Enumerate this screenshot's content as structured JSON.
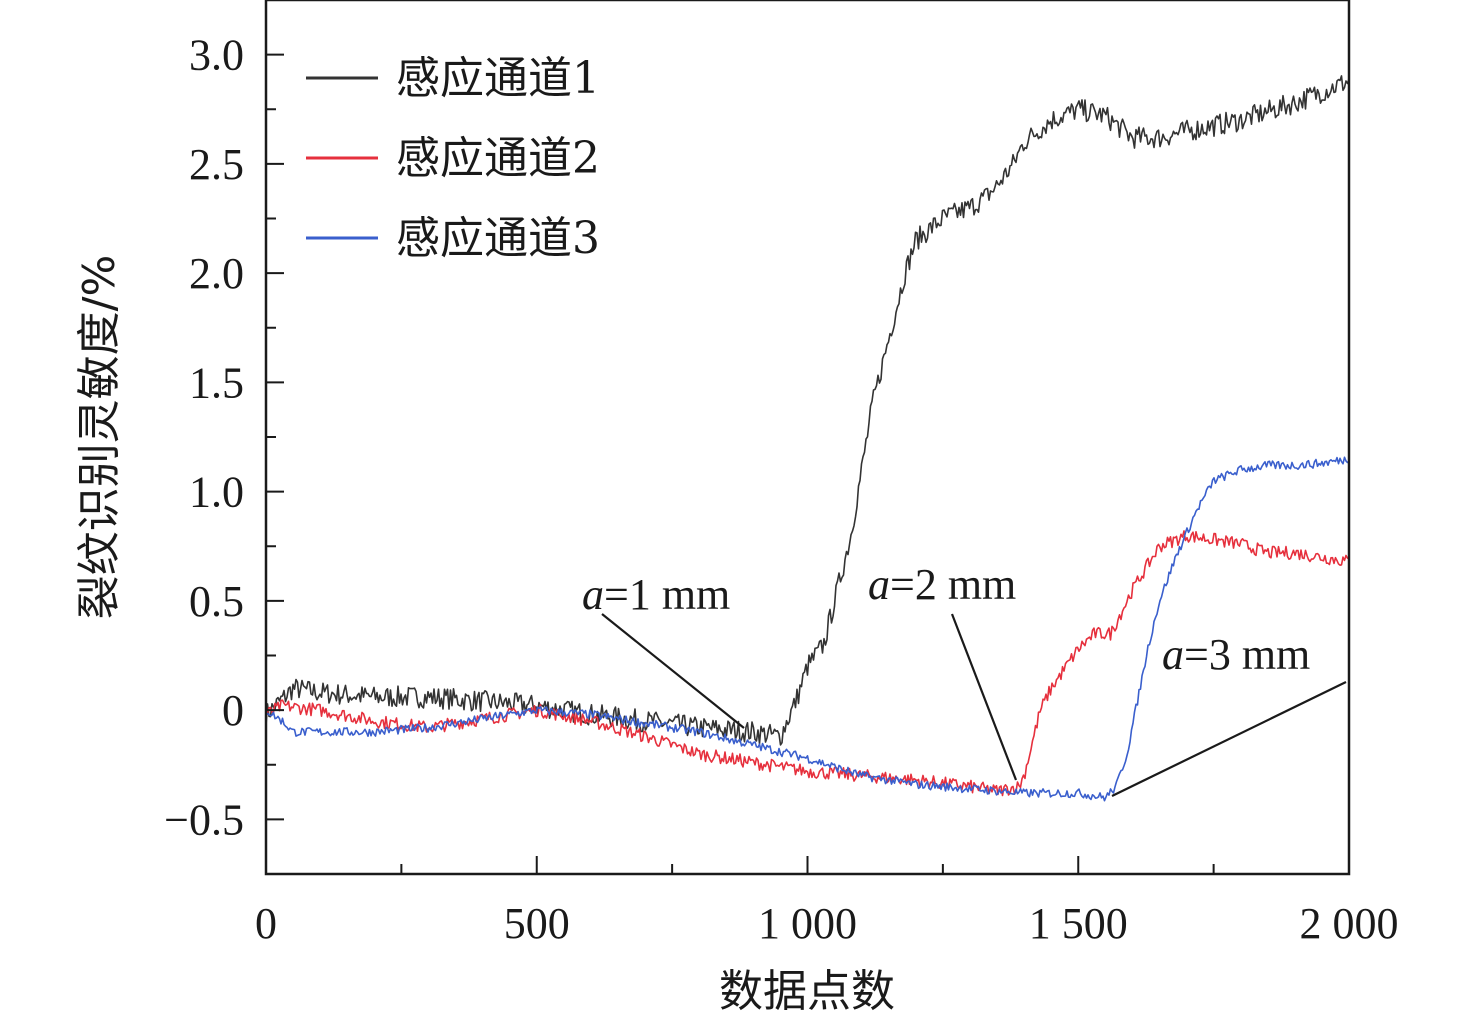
{
  "chart_data": {
    "type": "line",
    "xlabel": "数据点数",
    "ylabel": "裂纹识别灵敏度/%",
    "xlim": [
      0,
      2000
    ],
    "ylim": [
      -0.75,
      3.25
    ],
    "x_ticks": [
      {
        "value": 0,
        "label": "0"
      },
      {
        "value": 500,
        "label": "500"
      },
      {
        "value": 1000,
        "label": "1 000"
      },
      {
        "value": 1500,
        "label": "1 500"
      },
      {
        "value": 2000,
        "label": "2 000"
      }
    ],
    "y_ticks": [
      {
        "value": -0.5,
        "label": "−0.5"
      },
      {
        "value": 0,
        "label": "0"
      },
      {
        "value": 0.5,
        "label": "0.5"
      },
      {
        "value": 1.0,
        "label": "1.0"
      },
      {
        "value": 1.5,
        "label": "1.5"
      },
      {
        "value": 2.0,
        "label": "2.0"
      },
      {
        "value": 2.5,
        "label": "2.5"
      },
      {
        "value": 3.0,
        "label": "3.0"
      }
    ],
    "grid": false,
    "legend_position": "top-left",
    "series": [
      {
        "name": "感应通道1",
        "color": "#333333",
        "noise": 0.05,
        "x": [
          0,
          30,
          50,
          100,
          200,
          300,
          400,
          500,
          600,
          700,
          800,
          900,
          950,
          980,
          1000,
          1030,
          1050,
          1080,
          1100,
          1120,
          1150,
          1180,
          1200,
          1250,
          1300,
          1330,
          1350,
          1380,
          1400,
          1450,
          1500,
          1550,
          1600,
          1650,
          1700,
          1800,
          1900,
          2000
        ],
        "y": [
          -0.02,
          0.05,
          0.1,
          0.08,
          0.06,
          0.06,
          0.04,
          0.02,
          -0.02,
          -0.05,
          -0.08,
          -0.1,
          -0.12,
          0.05,
          0.2,
          0.3,
          0.5,
          0.8,
          1.1,
          1.4,
          1.7,
          2.0,
          2.15,
          2.25,
          2.3,
          2.35,
          2.4,
          2.5,
          2.6,
          2.7,
          2.75,
          2.72,
          2.62,
          2.62,
          2.65,
          2.7,
          2.78,
          2.88
        ]
      },
      {
        "name": "感应通道2",
        "color": "#e6303d",
        "noise": 0.03,
        "x": [
          0,
          30,
          100,
          200,
          300,
          400,
          500,
          600,
          700,
          800,
          900,
          1000,
          1100,
          1200,
          1300,
          1350,
          1390,
          1400,
          1410,
          1430,
          1450,
          1500,
          1530,
          1560,
          1600,
          1650,
          1700,
          1750,
          1800,
          1850,
          1900,
          1950,
          2000
        ],
        "y": [
          -0.02,
          0.02,
          0.0,
          -0.05,
          -0.08,
          -0.04,
          0.0,
          -0.05,
          -0.12,
          -0.2,
          -0.24,
          -0.28,
          -0.3,
          -0.32,
          -0.35,
          -0.37,
          -0.35,
          -0.3,
          -0.2,
          0.0,
          0.1,
          0.28,
          0.35,
          0.35,
          0.55,
          0.75,
          0.8,
          0.78,
          0.76,
          0.72,
          0.72,
          0.7,
          0.68
        ]
      },
      {
        "name": "感应通道3",
        "color": "#3a5fcd",
        "noise": 0.02,
        "x": [
          0,
          30,
          50,
          100,
          200,
          300,
          400,
          500,
          600,
          700,
          800,
          900,
          1000,
          1100,
          1200,
          1300,
          1400,
          1500,
          1550,
          1570,
          1590,
          1610,
          1630,
          1650,
          1680,
          1720,
          1750,
          1800,
          1850,
          1900,
          1950,
          2000
        ],
        "y": [
          0.0,
          -0.05,
          -0.1,
          -0.1,
          -0.1,
          -0.08,
          -0.04,
          0.0,
          -0.02,
          -0.06,
          -0.1,
          -0.16,
          -0.22,
          -0.3,
          -0.34,
          -0.36,
          -0.38,
          -0.38,
          -0.4,
          -0.35,
          -0.2,
          0.05,
          0.3,
          0.5,
          0.7,
          0.92,
          1.05,
          1.1,
          1.12,
          1.12,
          1.13,
          1.15
        ]
      }
    ],
    "annotations": [
      {
        "prefix": "a",
        "text": "=1 mm",
        "label_x": 1.0,
        "label_y": 0.54,
        "point_x": 890,
        "point_y": -0.05
      },
      {
        "prefix": "a",
        "text": "=2 mm",
        "label_x": 2.0,
        "label_y": 0.57,
        "point_x": 1390,
        "point_y": -0.37
      },
      {
        "prefix": "a",
        "text": "=3 mm",
        "label_x": 3.0,
        "label_y": 0.24,
        "point_x": 1560,
        "point_y": -0.4
      }
    ]
  }
}
